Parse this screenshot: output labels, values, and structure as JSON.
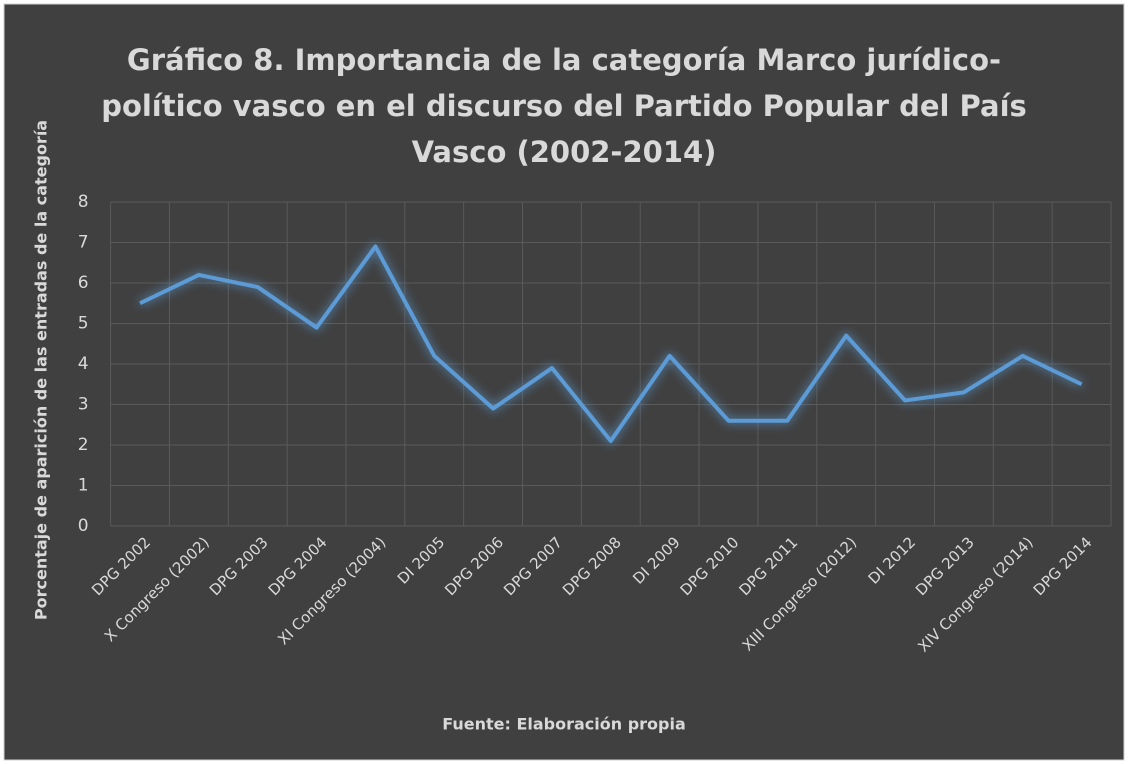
{
  "chart_data": {
    "type": "line",
    "title": [
      "Gráfico 8. Importancia de la categoría Marco jurídico-",
      "político vasco en el discurso del Partido Popular del País",
      "Vasco (2002-2014)"
    ],
    "x_label": "Fuente: Elaboración propia",
    "y_label": "Porcentaje de aparición de las entradas de la categoría",
    "categories": [
      "DPG 2002",
      "X Congreso (2002)",
      "DPG 2003",
      "DPG 2004",
      "XI Congreso (2004)",
      "DI 2005",
      "DPG 2006",
      "DPG 2007",
      "DPG 2008",
      "DI 2009",
      "DPG 2010",
      "DPG 2011",
      "XIII Congreso (2012)",
      "DI 2012",
      "DPG 2013",
      "XIV Congreso (2014)",
      "DPG 2014"
    ],
    "series": [
      {
        "name": "Porcentaje",
        "color": "#5b9bd5",
        "values": [
          5.5,
          6.2,
          5.9,
          4.9,
          6.9,
          4.2,
          2.9,
          3.9,
          2.1,
          4.2,
          2.6,
          2.6,
          4.7,
          3.1,
          3.3,
          4.2,
          3.5
        ]
      }
    ],
    "ylim": [
      0,
      8
    ],
    "yticks": [
      0,
      1,
      2,
      3,
      4,
      5,
      6,
      7,
      8
    ],
    "grid": true
  }
}
